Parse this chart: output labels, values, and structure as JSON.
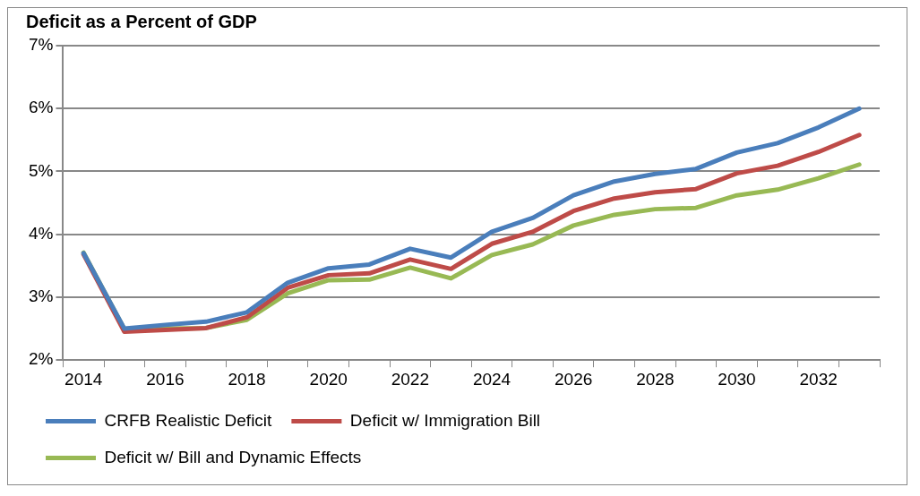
{
  "chart_data": {
    "type": "line",
    "title": "Deficit as a Percent of GDP",
    "categories": [
      "2014",
      null,
      "2016",
      null,
      "2018",
      null,
      "2020",
      null,
      "2022",
      null,
      "2024",
      null,
      "2026",
      null,
      "2028",
      null,
      "2030",
      null,
      "2032",
      null
    ],
    "series": [
      {
        "name": "CRFB Realistic Deficit",
        "color": "#4a7ebb",
        "values": [
          3.7,
          2.5,
          2.56,
          2.61,
          2.76,
          3.23,
          3.46,
          3.52,
          3.77,
          3.63,
          4.04,
          4.26,
          4.62,
          4.84,
          4.96,
          5.04,
          5.3,
          5.45,
          5.7,
          6.0
        ]
      },
      {
        "name": "Deficit w/ Immigration Bill",
        "color": "#be4b48",
        "values": [
          3.68,
          2.45,
          2.48,
          2.51,
          2.68,
          3.15,
          3.35,
          3.38,
          3.6,
          3.45,
          3.85,
          4.04,
          4.37,
          4.57,
          4.67,
          4.72,
          4.97,
          5.09,
          5.31,
          5.58
        ]
      },
      {
        "name": "Deficit w/ Bill and Dynamic Effects",
        "color": "#98b954",
        "values": [
          3.71,
          2.49,
          2.5,
          2.51,
          2.64,
          3.06,
          3.27,
          3.28,
          3.47,
          3.3,
          3.67,
          3.84,
          4.14,
          4.31,
          4.4,
          4.42,
          4.62,
          4.71,
          4.89,
          5.11
        ]
      }
    ],
    "ylim": [
      2,
      7
    ],
    "yticks": [
      {
        "value": 2,
        "label": "2%"
      },
      {
        "value": 3,
        "label": "3%"
      },
      {
        "value": 4,
        "label": "4%"
      },
      {
        "value": 5,
        "label": "5%"
      },
      {
        "value": 6,
        "label": "6%"
      },
      {
        "value": 7,
        "label": "7%"
      }
    ],
    "grid": "y",
    "legend": "bottom",
    "marker": "none",
    "line_style": "solid"
  }
}
